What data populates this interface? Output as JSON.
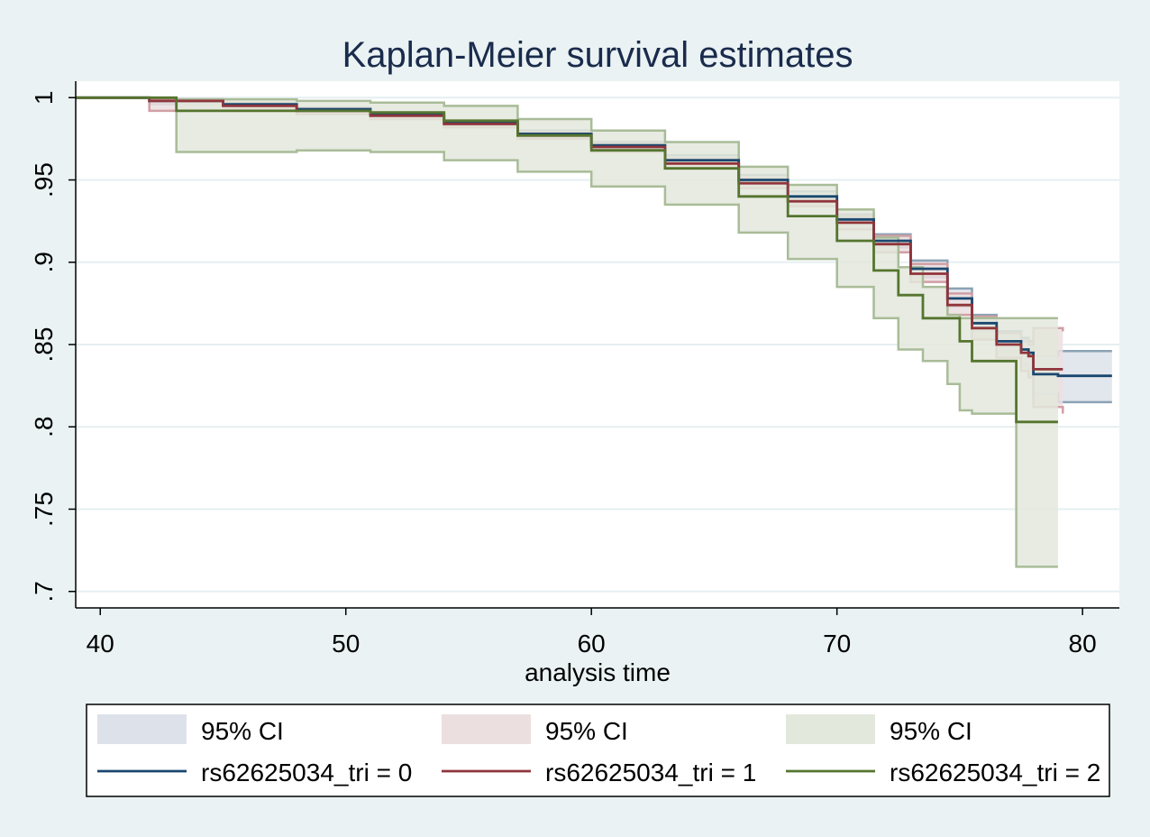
{
  "chart_data": {
    "type": "line",
    "title": "Kaplan-Meier survival estimates",
    "xlabel": "analysis time",
    "ylabel": "",
    "xlim": [
      39,
      81.5
    ],
    "ylim": [
      0.69,
      1.01
    ],
    "x_ticks": [
      40,
      50,
      60,
      70,
      80
    ],
    "x_tick_labels": [
      "40",
      "50",
      "60",
      "70",
      "80"
    ],
    "y_ticks": [
      0.7,
      0.75,
      0.8,
      0.85,
      0.9,
      0.95,
      1
    ],
    "y_tick_labels": [
      ".7",
      ".75",
      ".8",
      ".85",
      ".9",
      ".95",
      "1"
    ],
    "grid": "horizontal",
    "legend_position": "bottom",
    "series": [
      {
        "name": "rs62625034_tri = 0",
        "color": "#1a476f",
        "ci_label": "95% CI",
        "ci_fill": "#dde2ea",
        "ci_line": "#8ba2b4",
        "x": [
          39,
          42,
          45,
          48,
          51,
          54,
          57,
          60,
          63,
          66,
          68,
          70,
          71.5,
          73,
          74.5,
          75.5,
          76.5,
          77.5,
          77.8,
          78,
          79,
          81.2
        ],
        "y": [
          1.0,
          0.998,
          0.996,
          0.993,
          0.99,
          0.985,
          0.978,
          0.971,
          0.962,
          0.95,
          0.94,
          0.926,
          0.913,
          0.896,
          0.878,
          0.863,
          0.852,
          0.847,
          0.845,
          0.832,
          0.831,
          0.831
        ],
        "lower": [
          1.0,
          0.996,
          0.995,
          0.992,
          0.989,
          0.984,
          0.976,
          0.969,
          0.96,
          0.948,
          0.937,
          0.923,
          0.909,
          0.891,
          0.873,
          0.858,
          0.846,
          0.838,
          0.835,
          0.82,
          0.815,
          0.815
        ],
        "upper": [
          1.0,
          0.999,
          0.997,
          0.994,
          0.991,
          0.986,
          0.98,
          0.973,
          0.965,
          0.953,
          0.943,
          0.929,
          0.917,
          0.901,
          0.884,
          0.868,
          0.858,
          0.854,
          0.852,
          0.843,
          0.846,
          0.846
        ]
      },
      {
        "name": "rs62625034_tri = 1",
        "color": "#90353b",
        "ci_label": "95% CI",
        "ci_fill": "#ecdfe0",
        "ci_line": "#d19fa4",
        "x": [
          39,
          42,
          45,
          48,
          51,
          54,
          57,
          60,
          63,
          66,
          68,
          70,
          71.5,
          73,
          74.5,
          75.5,
          76.5,
          77.5,
          77.8,
          78,
          79.2
        ],
        "y": [
          1.0,
          0.998,
          0.995,
          0.992,
          0.989,
          0.984,
          0.977,
          0.97,
          0.96,
          0.948,
          0.937,
          0.924,
          0.911,
          0.893,
          0.874,
          0.86,
          0.85,
          0.845,
          0.843,
          0.835,
          0.835
        ],
        "lower": [
          1.0,
          0.992,
          0.993,
          0.99,
          0.987,
          0.982,
          0.975,
          0.967,
          0.957,
          0.945,
          0.934,
          0.92,
          0.906,
          0.888,
          0.868,
          0.853,
          0.842,
          0.834,
          0.83,
          0.812,
          0.808
        ],
        "upper": [
          1.0,
          0.999,
          0.997,
          0.994,
          0.991,
          0.986,
          0.979,
          0.972,
          0.963,
          0.951,
          0.94,
          0.928,
          0.916,
          0.899,
          0.881,
          0.867,
          0.857,
          0.852,
          0.85,
          0.86,
          0.858
        ]
      },
      {
        "name": "rs62625034_tri = 2",
        "color": "#55752f",
        "ci_label": "95% CI",
        "ci_fill": "#e3e8dc",
        "ci_line": "#a9bc98",
        "x": [
          39,
          43,
          43.1,
          48,
          51,
          54,
          57,
          60,
          63,
          66,
          68,
          70,
          71.5,
          72.5,
          73.5,
          74.5,
          75,
          75.5,
          76.5,
          77.2,
          77.3,
          79
        ],
        "y": [
          1.0,
          1.0,
          0.992,
          0.992,
          0.991,
          0.986,
          0.977,
          0.968,
          0.957,
          0.94,
          0.928,
          0.913,
          0.895,
          0.88,
          0.866,
          0.866,
          0.852,
          0.84,
          0.84,
          0.84,
          0.803,
          0.803
        ],
        "lower": [
          1.0,
          1.0,
          0.967,
          0.968,
          0.967,
          0.962,
          0.955,
          0.946,
          0.935,
          0.918,
          0.902,
          0.885,
          0.866,
          0.847,
          0.84,
          0.826,
          0.81,
          0.808,
          0.808,
          0.808,
          0.715,
          0.715
        ],
        "upper": [
          1.0,
          1.0,
          0.999,
          0.998,
          0.997,
          0.995,
          0.987,
          0.98,
          0.973,
          0.958,
          0.947,
          0.932,
          0.915,
          0.897,
          0.885,
          0.868,
          0.866,
          0.866,
          0.866,
          0.866,
          0.866,
          0.866
        ]
      }
    ]
  }
}
